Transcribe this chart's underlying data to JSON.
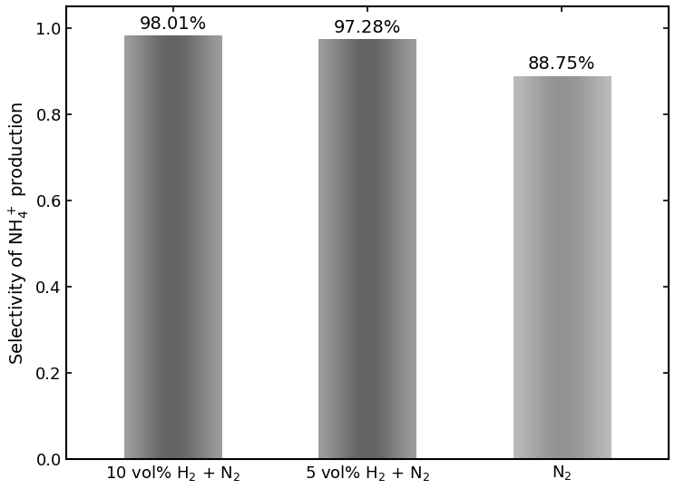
{
  "categories": [
    "10 vol% H$_2$ + N$_2$",
    "5 vol% H$_2$ + N$_2$",
    "N$_2$"
  ],
  "values": [
    0.9801,
    0.9728,
    0.8875
  ],
  "labels": [
    "98.01%",
    "97.28%",
    "88.75%"
  ],
  "bar_dark": [
    "#636363",
    "#636363",
    "#929292"
  ],
  "bar_light": [
    "#b0b0b0",
    "#b0b0b0",
    "#c8c8c8"
  ],
  "ylabel": "Selectivity of NH$_4^+$ production",
  "ylim": [
    0.0,
    1.05
  ],
  "yticks": [
    0.0,
    0.2,
    0.4,
    0.6,
    0.8,
    1.0
  ],
  "label_fontsize": 14,
  "tick_fontsize": 13,
  "bar_width": 0.5,
  "figsize": [
    7.44,
    5.39
  ],
  "dpi": 100
}
